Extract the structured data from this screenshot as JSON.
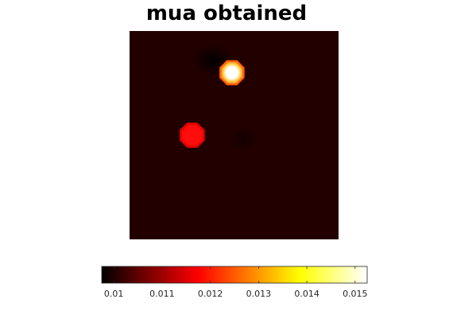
{
  "chart_data": {
    "type": "heatmap",
    "title": "mua obtained",
    "colormap": "hot",
    "background_color": "#230000",
    "colorbar": {
      "orientation": "horizontal",
      "range": [
        0.00975,
        0.01525
      ],
      "ticks": [
        0.01,
        0.011,
        0.012,
        0.013,
        0.014,
        0.015
      ],
      "tick_labels": [
        "0.01",
        "0.011",
        "0.012",
        "0.013",
        "0.014",
        "0.015"
      ]
    },
    "features": [
      {
        "kind": "inclusion",
        "value": 0.0153,
        "center": [
          0.49,
          0.2
        ],
        "radius": 0.065
      },
      {
        "kind": "inclusion",
        "value": 0.0121,
        "center": [
          0.3,
          0.5
        ],
        "radius": 0.065
      },
      {
        "kind": "shadow",
        "value": 0.0098,
        "center": [
          0.4,
          0.14
        ],
        "radius": 0.08
      },
      {
        "kind": "shadow",
        "value": 0.0099,
        "center": [
          0.55,
          0.52
        ],
        "radius": 0.06
      }
    ]
  }
}
